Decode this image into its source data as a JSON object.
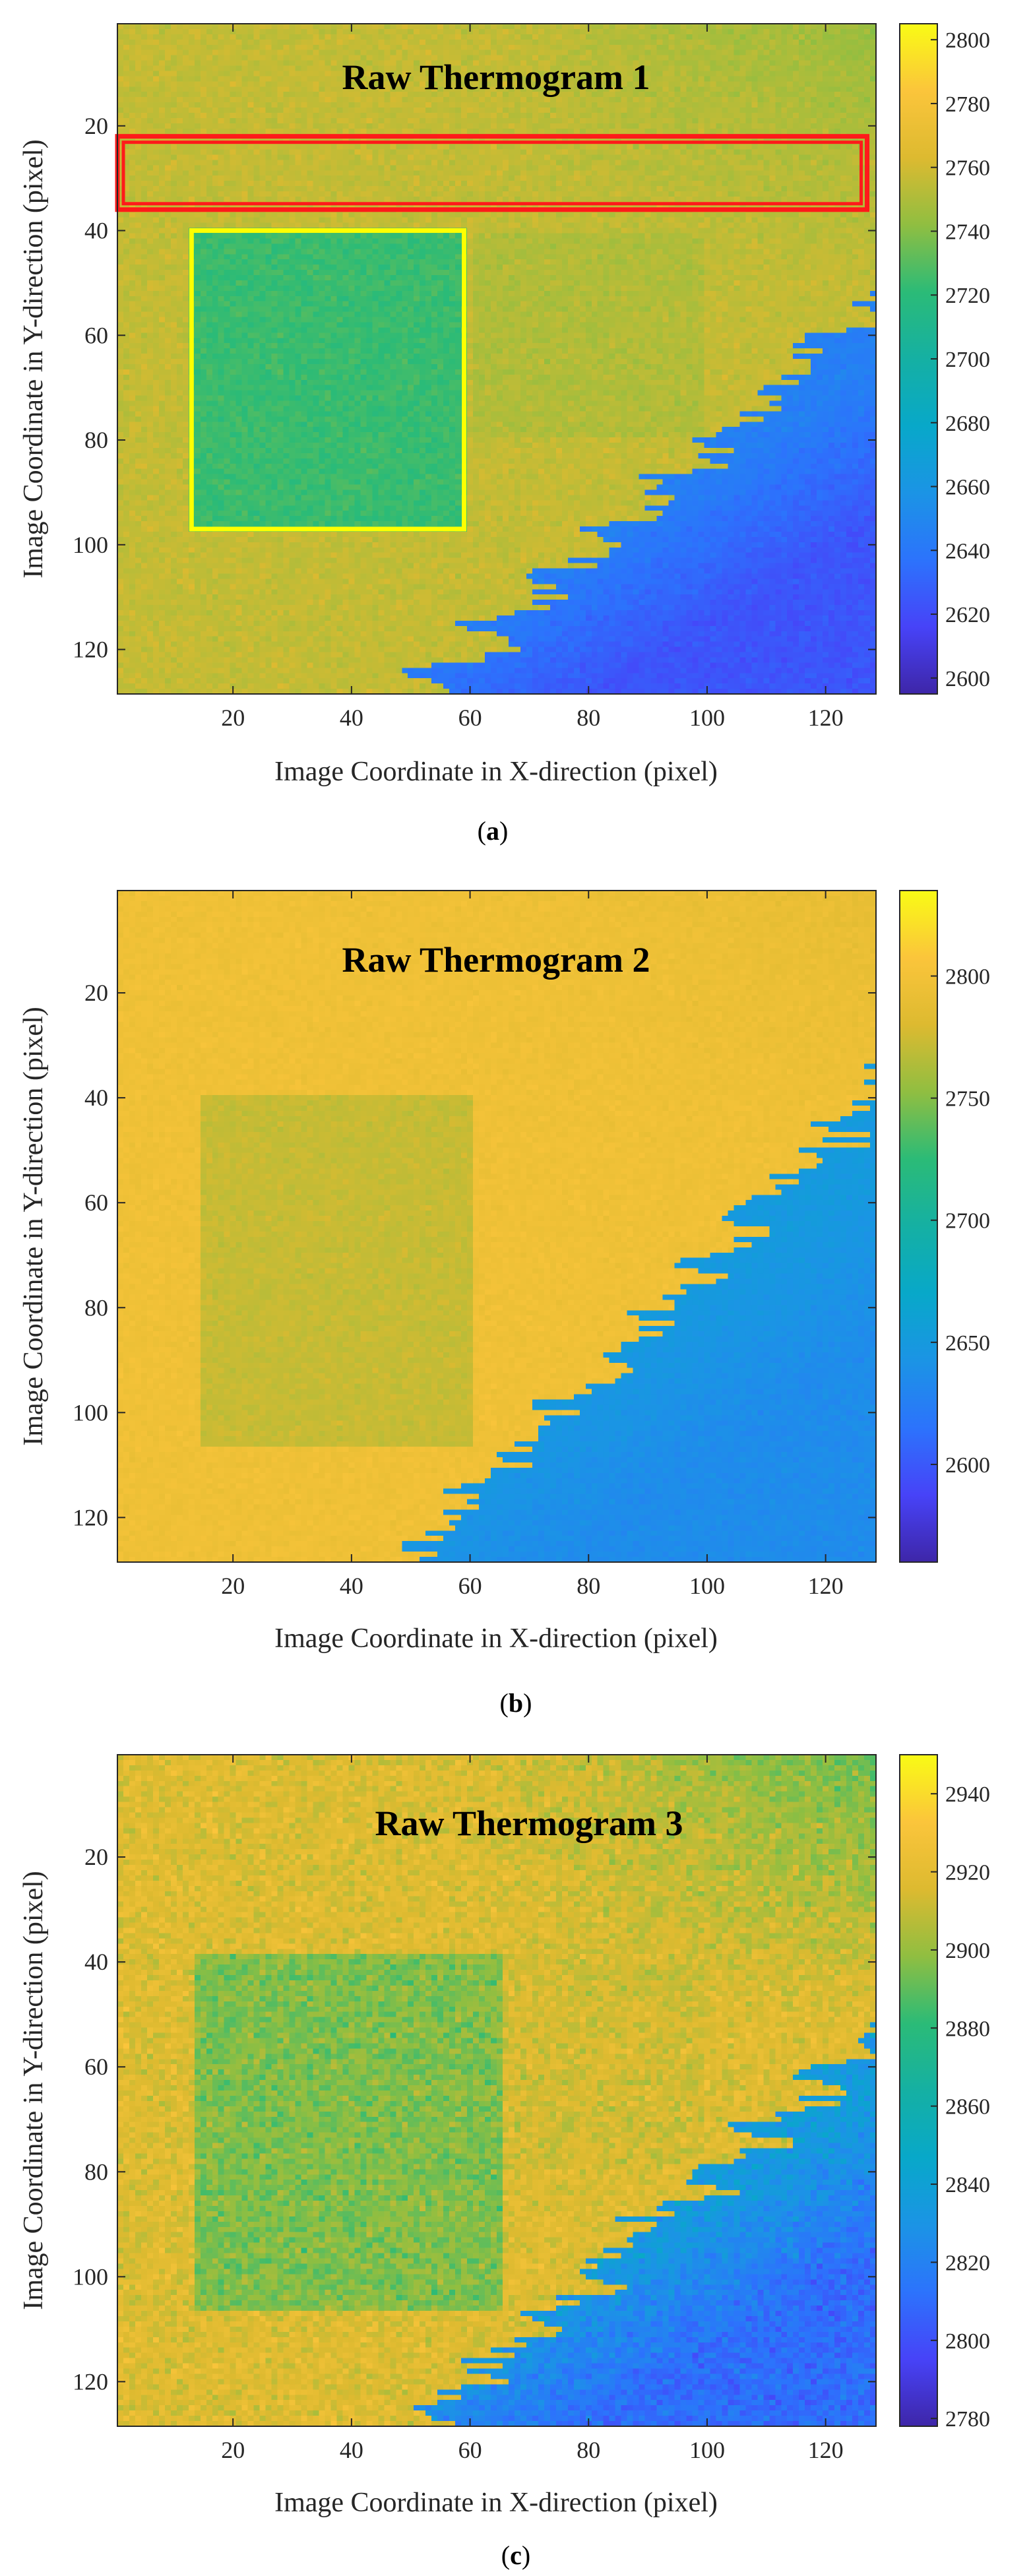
{
  "chart_data": [
    {
      "type": "heatmap",
      "panel_label": "a",
      "caption_prefix": "(",
      "caption_suffix": ")",
      "title": "Raw Thermogram 1",
      "xlabel": "Image Coordinate in X-direction (pixel)",
      "ylabel": "Image Coordinate in Y-direction (pixel)",
      "xlim": [
        0.5,
        128.5
      ],
      "ylim": [
        0.5,
        128.5
      ],
      "xticks": [
        20,
        40,
        60,
        80,
        100,
        120
      ],
      "yticks": [
        20,
        40,
        60,
        80,
        100,
        120
      ],
      "colorbar": {
        "clim": [
          2595,
          2805
        ],
        "ticks": [
          2600,
          2620,
          2640,
          2660,
          2680,
          2700,
          2720,
          2740,
          2760,
          2780,
          2800
        ]
      },
      "field": {
        "base": 2756,
        "upper_right_value": 2745,
        "upper_right_gradient": 40,
        "boundary_x_at_bottom": 52,
        "boundary_y_at_right": 55,
        "cold_value": 2645,
        "cold_far_value": 2615,
        "square_value": 2724,
        "square_x": [
          13,
          59
        ],
        "square_y": [
          40,
          97
        ],
        "noise": 5,
        "mid_band_offset": 5
      },
      "rois": [
        {
          "label": "background-roi",
          "color": "#ff1a1a",
          "x": [
            0.5,
            127
          ],
          "y": [
            22,
            36
          ],
          "double": true
        },
        {
          "label": "defect-roi",
          "color": "#ffff00",
          "x": [
            13,
            59
          ],
          "y": [
            40,
            97
          ],
          "double": false
        }
      ]
    },
    {
      "type": "heatmap",
      "panel_label": "b",
      "caption_prefix": "(",
      "caption_suffix": ")",
      "title": "Raw Thermogram 2",
      "xlabel": "Image Coordinate in X-direction (pixel)",
      "ylabel": "Image Coordinate in Y-direction (pixel)",
      "xlim": [
        0.5,
        128.5
      ],
      "ylim": [
        0.5,
        128.5
      ],
      "xticks": [
        20,
        40,
        60,
        80,
        100,
        120
      ],
      "yticks": [
        20,
        40,
        60,
        80,
        100,
        120
      ],
      "colorbar": {
        "clim": [
          2560,
          2835
        ],
        "ticks": [
          2600,
          2650,
          2700,
          2750,
          2800
        ]
      },
      "field": {
        "base": 2797,
        "upper_right_value": 2790,
        "upper_right_gradient": 15,
        "boundary_x_at_bottom": 50,
        "boundary_y_at_right": 40,
        "cold_value": 2650,
        "cold_far_value": 2630,
        "square_value": 2772,
        "square_x": [
          15,
          60
        ],
        "square_y": [
          40,
          106
        ],
        "noise": 5,
        "mid_band_offset": 0
      },
      "rois": []
    },
    {
      "type": "heatmap",
      "panel_label": "c",
      "caption_prefix": "(",
      "caption_suffix": ")",
      "title": "Raw Thermogram 3",
      "xlabel": "Image Coordinate in X-direction (pixel)",
      "ylabel": "Image Coordinate in Y-direction (pixel)",
      "xlim": [
        0.5,
        128.5
      ],
      "ylim": [
        0.5,
        128.5
      ],
      "xticks": [
        20,
        40,
        60,
        80,
        100,
        120
      ],
      "yticks": [
        20,
        40,
        60,
        80,
        100,
        120
      ],
      "colorbar": {
        "clim": [
          2778,
          2950
        ],
        "ticks": [
          2780,
          2800,
          2820,
          2840,
          2860,
          2880,
          2900,
          2920,
          2940
        ]
      },
      "field": {
        "base": 2917,
        "upper_right_value": 2892,
        "upper_right_gradient": 50,
        "boundary_x_at_bottom": 52,
        "boundary_y_at_right": 55,
        "cold_value": 2835,
        "cold_far_value": 2800,
        "square_value": 2896,
        "square_x": [
          14,
          65
        ],
        "square_y": [
          39,
          106
        ],
        "noise": 10,
        "mid_band_offset": 3
      },
      "rois": []
    }
  ]
}
